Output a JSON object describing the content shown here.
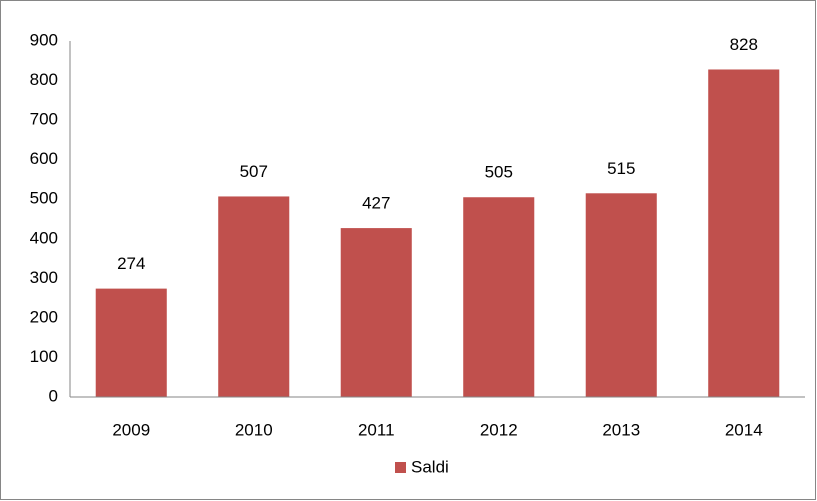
{
  "chart_data": {
    "type": "bar",
    "categories": [
      "2009",
      "2010",
      "2011",
      "2012",
      "2013",
      "2014"
    ],
    "series": [
      {
        "name": "Saldi",
        "color": "#c0504d",
        "values": [
          274,
          507,
          427,
          505,
          515,
          828
        ]
      }
    ],
    "ylim": [
      0,
      900
    ],
    "yticks": [
      0,
      100,
      200,
      300,
      400,
      500,
      600,
      700,
      800,
      900
    ],
    "grid": false,
    "legend": "bottom",
    "data_labels": true
  }
}
